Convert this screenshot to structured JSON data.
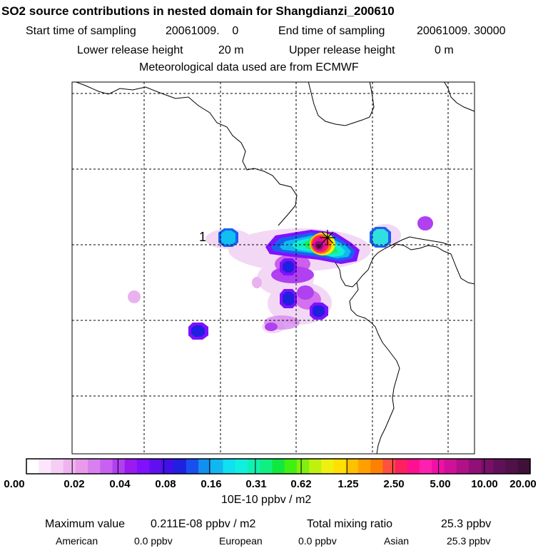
{
  "header": {
    "title": "SO2 source contributions in nested domain for Shangdianzi_200610",
    "start_label": "Start time of sampling",
    "start_value": "20061009.    0",
    "end_label": "End time of sampling",
    "end_value": "20061009. 30000",
    "lower_label": "Lower release height",
    "lower_value": "20 m",
    "upper_label": "Upper release height",
    "upper_value": "0 m",
    "met_text": "Meteorological data used are from ECMWF"
  },
  "map": {
    "site_label": "1",
    "gridlines": "dashed",
    "features": [
      "coastline",
      "country-border",
      "receptor-site-marker",
      "concentration-field"
    ]
  },
  "colorbar": {
    "tick_labels": [
      "0.00",
      "0.02",
      "0.04",
      "0.08",
      "0.16",
      "0.31",
      "0.62",
      "1.25",
      "2.50",
      "5.00",
      "10.00",
      "20.00"
    ],
    "unit_label": "10E-10 ppbv / m2",
    "colors": [
      "#ffffff",
      "#fbe6fb",
      "#f5cdf5",
      "#efb4ef",
      "#e99be9",
      "#d980f0",
      "#c860f0",
      "#b040f0",
      "#9a1af0",
      "#8010ff",
      "#6010f0",
      "#4010e8",
      "#2020e0",
      "#1850f0",
      "#1090f0",
      "#10b8f0",
      "#10e0f0",
      "#10f0e0",
      "#10f0b0",
      "#10f080",
      "#10e840",
      "#40f010",
      "#80f010",
      "#c0f010",
      "#f0f010",
      "#ffe000",
      "#ffc000",
      "#ffa000",
      "#ff8000",
      "#ff5040",
      "#ff2060",
      "#ff1090",
      "#ff20b0",
      "#f010a8",
      "#d01098",
      "#b01088",
      "#901078",
      "#781068",
      "#601058",
      "#501048",
      "#401038"
    ]
  },
  "stats": {
    "max_label": "Maximum value",
    "max_value": "0.211E-08 ppbv / m2",
    "total_label": "Total mixing ratio",
    "total_value": "25.3 ppbv",
    "american_label": "American",
    "american_value": "0.0 ppbv",
    "european_label": "European",
    "european_value": "0.0 ppbv",
    "asian_label": "Asian",
    "asian_value": "25.3 ppbv"
  }
}
